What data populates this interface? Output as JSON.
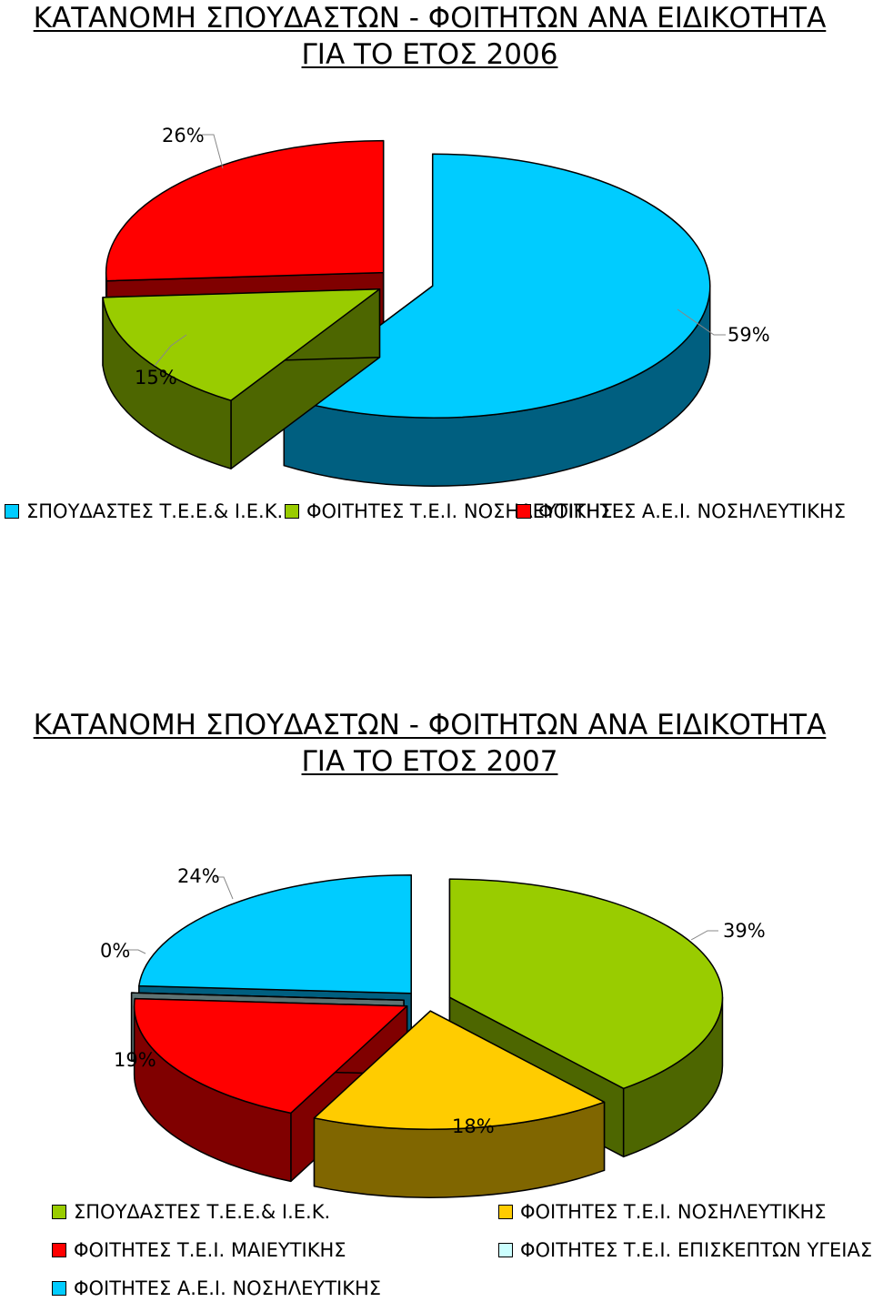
{
  "chart_data": [
    {
      "type": "pie",
      "title": "ΚΑΤΑΝΟΜΗ ΣΠΟΥΔΑΣΤΩΝ - ΦΟΙΤΗΤΩΝ ΑΝΑ ΕΙΔΙΚΟΤΗΤΑ",
      "subtitle": "ΓΙΑ ΤΟ ΕΤΟΣ 2006",
      "three_d": true,
      "exploded": true,
      "legend_position": "bottom",
      "slices": [
        {
          "name": "ΣΠΟΥΔΑΣΤΕΣ Τ.Ε.Ε.& Ι.Ε.Κ.",
          "value": 59,
          "label": "59%",
          "color": "#00ccff",
          "side_color": "#005f80"
        },
        {
          "name": "ΦΟΙΤΗΤΕΣ Τ.Ε.Ι. ΝΟΣΗΛΕΥΤΙΚΗΣ",
          "value": 15,
          "label": "15%",
          "color": "#99cc00",
          "side_color": "#4d6600"
        },
        {
          "name": "ΦΟΙΤΗΤΕΣ Α.Ε.Ι. ΝΟΣΗΛΕΥΤΙΚΗΣ",
          "value": 26,
          "label": "26%",
          "color": "#ff0000",
          "side_color": "#800000"
        }
      ]
    },
    {
      "type": "pie",
      "title": "ΚΑΤΑΝΟΜΗ ΣΠΟΥΔΑΣΤΩΝ - ΦΟΙΤΗΤΩΝ ΑΝΑ ΕΙΔΙΚΟΤΗΤΑ",
      "subtitle": "ΓΙΑ ΤΟ ΕΤΟΣ 2007",
      "three_d": true,
      "exploded": true,
      "legend_position": "bottom",
      "slices": [
        {
          "name": "ΣΠΟΥΔΑΣΤΕΣ Τ.Ε.Ε.& Ι.Ε.Κ.",
          "value": 39,
          "label": "39%",
          "color": "#99cc00",
          "side_color": "#4d6600"
        },
        {
          "name": "ΦΟΙΤΗΤΕΣ Τ.Ε.Ι. ΝΟΣΗΛΕΥΤΙΚΗΣ",
          "value": 18,
          "label": "18%",
          "color": "#ffcc00",
          "side_color": "#806600"
        },
        {
          "name": "ΦΟΙΤΗΤΕΣ Τ.Ε.Ι. ΜΑΙΕΥΤΙΚΗΣ",
          "value": 19,
          "label": "19%",
          "color": "#ff0000",
          "side_color": "#800000"
        },
        {
          "name": "ΦΟΙΤΗΤΕΣ Τ.Ε.Ι. ΕΠΙΣΚΕΠΤΩΝ ΥΓΕΙΑΣ",
          "value": 0,
          "label": "0%",
          "color": "#ccffff",
          "side_color": "#5f7373"
        },
        {
          "name": "ΦΟΙΤΗΤΕΣ Α.Ε.Ι. ΝΟΣΗΛΕΥΤΙΚΗΣ",
          "value": 24,
          "label": "24%",
          "color": "#00ccff",
          "side_color": "#005f80"
        }
      ]
    }
  ]
}
